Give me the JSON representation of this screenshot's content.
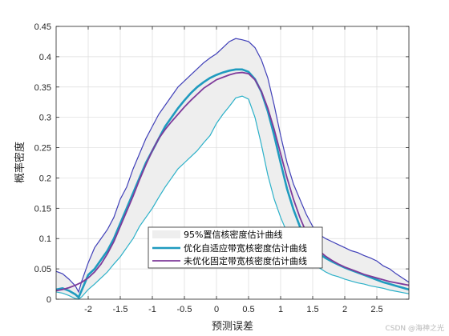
{
  "chart_data": {
    "type": "line",
    "title": "",
    "xlabel": "预测误差",
    "ylabel": "概率密度",
    "xlim": [
      -2.5,
      3.0
    ],
    "ylim": [
      0,
      0.45
    ],
    "xticks": [
      -2,
      -1.5,
      -1,
      -0.5,
      0,
      0.5,
      1,
      1.5,
      2,
      2.5
    ],
    "xtick_labels": [
      "-2",
      "-1.5",
      "-1",
      "-0.5",
      "0",
      "0.5",
      "1",
      "1.5",
      "2",
      "2.5"
    ],
    "yticks": [
      0,
      0.05,
      0.1,
      0.15,
      0.2,
      0.25,
      0.3,
      0.35,
      0.4,
      0.45
    ],
    "ytick_labels": [
      "0",
      "0.05",
      "0.1",
      "0.15",
      "0.2",
      "0.25",
      "0.3",
      "0.35",
      "0.4",
      "0.45"
    ],
    "grid": true,
    "legend_position": "bottom-center",
    "band": {
      "name": "95%置信核密度估计曲线",
      "fill_color": "#eeeeee",
      "upper_color": "#3f3fb8",
      "lower_color": "#2ab0c8",
      "upper": {
        "x": [
          -2.5,
          -2.4,
          -2.3,
          -2.2,
          -2.15,
          -2.1,
          -2.0,
          -1.9,
          -1.8,
          -1.7,
          -1.6,
          -1.5,
          -1.4,
          -1.3,
          -1.2,
          -1.1,
          -1.0,
          -0.9,
          -0.8,
          -0.7,
          -0.6,
          -0.5,
          -0.4,
          -0.3,
          -0.2,
          -0.1,
          0.0,
          0.1,
          0.2,
          0.3,
          0.4,
          0.5,
          0.6,
          0.7,
          0.8,
          0.9,
          1.0,
          1.1,
          1.2,
          1.3,
          1.4,
          1.5,
          1.6,
          1.7,
          1.8,
          1.9,
          2.0,
          2.1,
          2.2,
          2.3,
          2.4,
          2.5,
          2.6,
          2.7,
          2.8,
          2.9,
          3.0
        ],
        "y": [
          0.046,
          0.042,
          0.033,
          0.022,
          0.012,
          0.03,
          0.06,
          0.085,
          0.1,
          0.115,
          0.135,
          0.165,
          0.185,
          0.215,
          0.24,
          0.265,
          0.285,
          0.305,
          0.32,
          0.335,
          0.35,
          0.36,
          0.37,
          0.38,
          0.39,
          0.398,
          0.405,
          0.415,
          0.425,
          0.43,
          0.428,
          0.425,
          0.415,
          0.395,
          0.365,
          0.32,
          0.27,
          0.225,
          0.19,
          0.165,
          0.14,
          0.12,
          0.107,
          0.1,
          0.095,
          0.09,
          0.085,
          0.08,
          0.077,
          0.072,
          0.068,
          0.063,
          0.055,
          0.05,
          0.042,
          0.035,
          0.028
        ]
      },
      "lower": {
        "x": [
          -2.5,
          -2.4,
          -2.3,
          -2.2,
          -2.15,
          -2.1,
          -2.0,
          -1.9,
          -1.8,
          -1.7,
          -1.6,
          -1.5,
          -1.4,
          -1.3,
          -1.2,
          -1.1,
          -1.0,
          -0.9,
          -0.8,
          -0.7,
          -0.6,
          -0.5,
          -0.4,
          -0.3,
          -0.2,
          -0.1,
          0.0,
          0.1,
          0.2,
          0.3,
          0.4,
          0.5,
          0.6,
          0.7,
          0.8,
          0.9,
          1.0,
          1.1,
          1.2,
          1.3,
          1.4,
          1.5,
          1.6,
          1.7,
          1.8,
          1.9,
          2.0,
          2.1,
          2.2,
          2.3,
          2.4,
          2.5,
          2.6,
          2.7,
          2.8,
          2.9,
          3.0
        ],
        "y": [
          0.012,
          0.01,
          0.006,
          0.001,
          0.0,
          0.004,
          0.016,
          0.025,
          0.035,
          0.045,
          0.058,
          0.07,
          0.085,
          0.1,
          0.12,
          0.135,
          0.15,
          0.168,
          0.185,
          0.2,
          0.215,
          0.225,
          0.235,
          0.245,
          0.258,
          0.27,
          0.29,
          0.305,
          0.318,
          0.332,
          0.335,
          0.33,
          0.3,
          0.255,
          0.205,
          0.165,
          0.135,
          0.11,
          0.095,
          0.08,
          0.068,
          0.06,
          0.052,
          0.045,
          0.04,
          0.037,
          0.033,
          0.03,
          0.027,
          0.025,
          0.022,
          0.02,
          0.018,
          0.015,
          0.013,
          0.011,
          0.009
        ]
      }
    },
    "series": [
      {
        "name": "优化自适应带宽核密度估计曲线",
        "color": "#1f9bbf",
        "x": [
          -2.5,
          -2.4,
          -2.3,
          -2.2,
          -2.15,
          -2.1,
          -2.0,
          -1.9,
          -1.8,
          -1.7,
          -1.6,
          -1.5,
          -1.4,
          -1.3,
          -1.2,
          -1.1,
          -1.0,
          -0.9,
          -0.8,
          -0.7,
          -0.6,
          -0.5,
          -0.4,
          -0.3,
          -0.2,
          -0.1,
          0.0,
          0.1,
          0.2,
          0.3,
          0.4,
          0.5,
          0.6,
          0.7,
          0.8,
          0.9,
          1.0,
          1.1,
          1.2,
          1.3,
          1.4,
          1.5,
          1.6,
          1.7,
          1.8,
          1.9,
          2.0,
          2.1,
          2.2,
          2.3,
          2.4,
          2.5,
          2.6,
          2.7,
          2.8,
          2.9,
          3.0
        ],
        "y": [
          0.016,
          0.018,
          0.014,
          0.008,
          0.003,
          0.015,
          0.04,
          0.05,
          0.065,
          0.08,
          0.1,
          0.125,
          0.15,
          0.175,
          0.2,
          0.225,
          0.245,
          0.265,
          0.285,
          0.3,
          0.315,
          0.328,
          0.34,
          0.35,
          0.358,
          0.365,
          0.37,
          0.374,
          0.377,
          0.379,
          0.379,
          0.375,
          0.363,
          0.342,
          0.31,
          0.27,
          0.225,
          0.182,
          0.148,
          0.12,
          0.1,
          0.085,
          0.075,
          0.068,
          0.062,
          0.057,
          0.052,
          0.048,
          0.044,
          0.04,
          0.036,
          0.032,
          0.028,
          0.025,
          0.022,
          0.019,
          0.016
        ]
      },
      {
        "name": "未优化固定带宽核密度估计曲线",
        "color": "#7e3a9a",
        "x": [
          -2.5,
          -2.4,
          -2.3,
          -2.2,
          -2.1,
          -2.0,
          -1.9,
          -1.8,
          -1.7,
          -1.6,
          -1.5,
          -1.4,
          -1.3,
          -1.2,
          -1.1,
          -1.0,
          -0.9,
          -0.8,
          -0.7,
          -0.6,
          -0.5,
          -0.4,
          -0.3,
          -0.2,
          -0.1,
          0.0,
          0.1,
          0.2,
          0.3,
          0.4,
          0.5,
          0.6,
          0.7,
          0.8,
          0.9,
          1.0,
          1.1,
          1.2,
          1.3,
          1.4,
          1.5,
          1.6,
          1.7,
          1.8,
          1.9,
          2.0,
          2.1,
          2.2,
          2.3,
          2.4,
          2.5,
          2.6,
          2.7,
          2.8,
          2.9,
          3.0
        ],
        "y": [
          0.014,
          0.016,
          0.019,
          0.023,
          0.028,
          0.035,
          0.045,
          0.058,
          0.075,
          0.095,
          0.12,
          0.145,
          0.17,
          0.197,
          0.222,
          0.245,
          0.265,
          0.28,
          0.293,
          0.305,
          0.317,
          0.328,
          0.338,
          0.348,
          0.355,
          0.362,
          0.366,
          0.37,
          0.373,
          0.374,
          0.372,
          0.362,
          0.343,
          0.315,
          0.28,
          0.24,
          0.2,
          0.165,
          0.135,
          0.11,
          0.092,
          0.08,
          0.071,
          0.064,
          0.058,
          0.053,
          0.049,
          0.045,
          0.041,
          0.038,
          0.035,
          0.032,
          0.029,
          0.027,
          0.025,
          0.023
        ]
      }
    ]
  },
  "watermark": "CSDN @海神之光"
}
